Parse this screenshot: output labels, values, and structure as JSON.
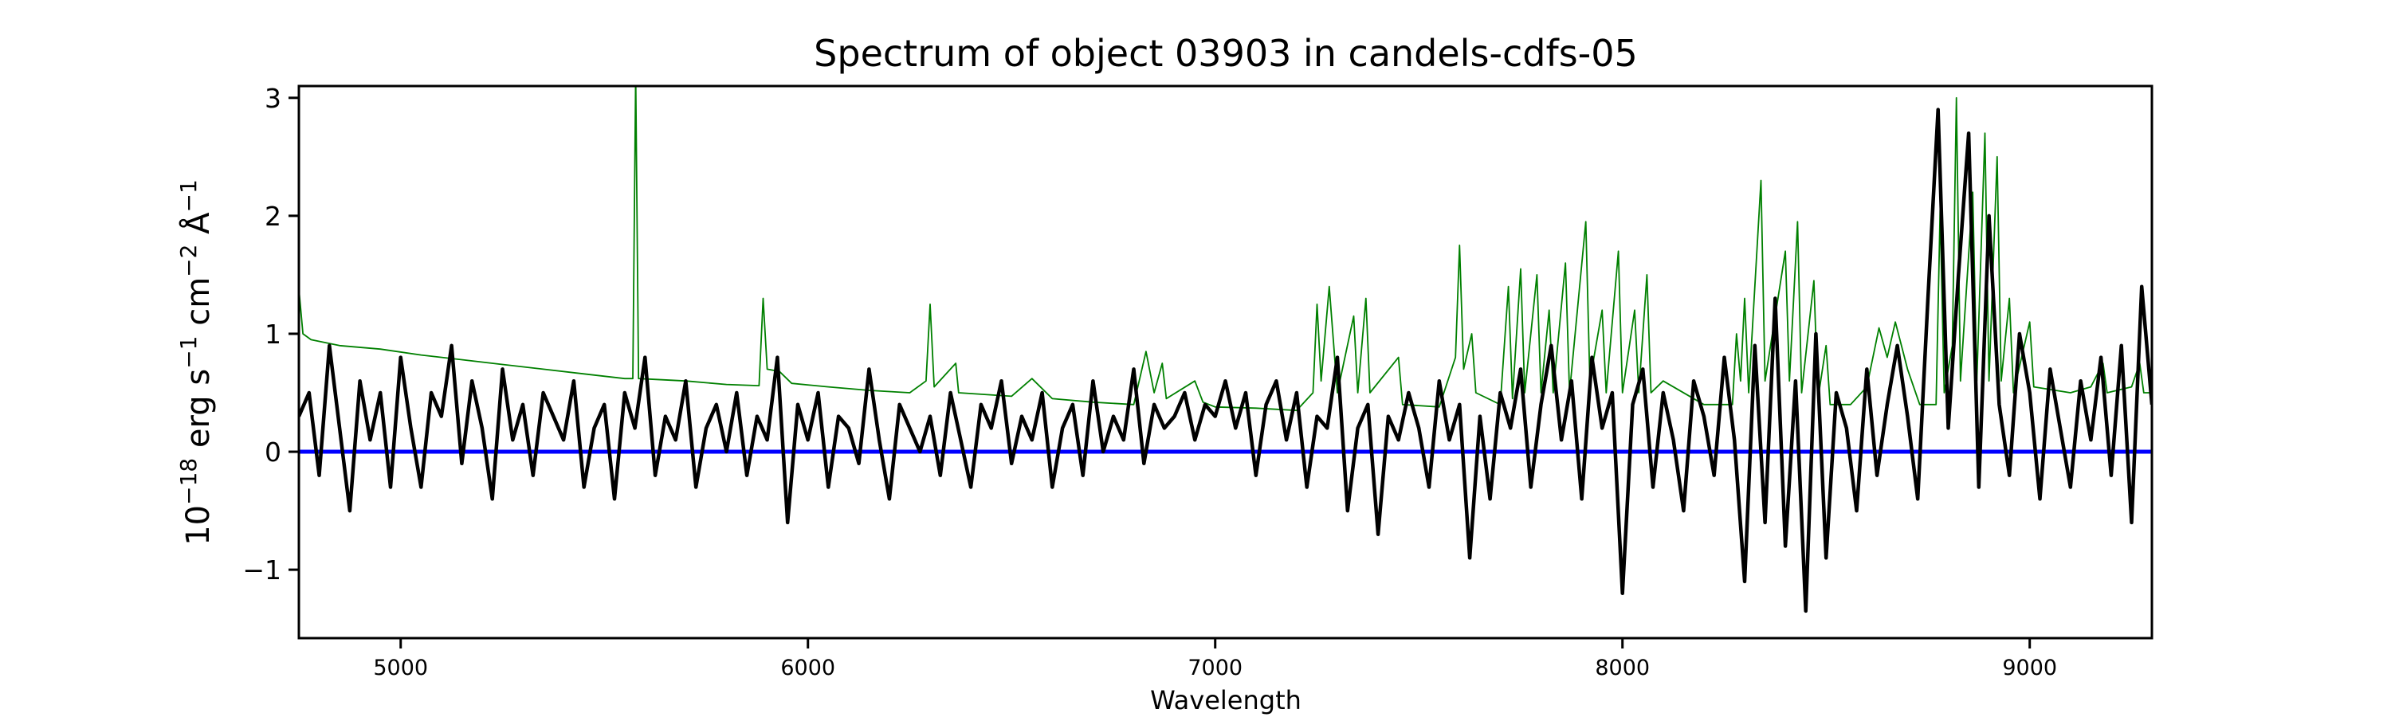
{
  "chart_data": {
    "type": "line",
    "title": "Spectrum of object 03903 in candels-cdfs-05",
    "xlabel": "Wavelength",
    "ylabel": "10^-18 erg s^-1 cm^-2 Å^-1",
    "ylabel_parts": {
      "base": "10",
      "exp1": "−18",
      "t1": " erg s",
      "exp2": "−1",
      "t2": " cm",
      "exp3": "−2",
      "t3": " Å",
      "exp4": "−1"
    },
    "xlim": [
      4750,
      9300
    ],
    "ylim": [
      -1.58,
      3.1
    ],
    "xticks": [
      5000,
      6000,
      7000,
      8000,
      9000
    ],
    "xtick_labels": [
      "5000",
      "6000",
      "7000",
      "8000",
      "9000"
    ],
    "yticks": [
      -1,
      0,
      1,
      2,
      3
    ],
    "ytick_labels": [
      "−1",
      "0",
      "1",
      "2",
      "3"
    ],
    "grid": false,
    "colors": {
      "flux": "#000000",
      "error": "#008000",
      "zero": "#0000ff"
    },
    "series": [
      {
        "role": "flux",
        "x": [
          4750,
          4775,
          4800,
          4825,
          4850,
          4875,
          4900,
          4925,
          4950,
          4975,
          5000,
          5025,
          5050,
          5075,
          5100,
          5125,
          5150,
          5175,
          5200,
          5225,
          5250,
          5275,
          5300,
          5325,
          5350,
          5375,
          5400,
          5425,
          5450,
          5475,
          5500,
          5525,
          5550,
          5575,
          5600,
          5625,
          5650,
          5675,
          5700,
          5725,
          5750,
          5775,
          5800,
          5825,
          5850,
          5875,
          5900,
          5925,
          5950,
          5975,
          6000,
          6025,
          6050,
          6075,
          6100,
          6125,
          6150,
          6175,
          6200,
          6225,
          6250,
          6275,
          6300,
          6325,
          6350,
          6375,
          6400,
          6425,
          6450,
          6475,
          6500,
          6525,
          6550,
          6575,
          6600,
          6625,
          6650,
          6675,
          6700,
          6725,
          6750,
          6775,
          6800,
          6825,
          6850,
          6875,
          6900,
          6925,
          6950,
          6975,
          7000,
          7025,
          7050,
          7075,
          7100,
          7125,
          7150,
          7175,
          7200,
          7225,
          7250,
          7275,
          7300,
          7325,
          7350,
          7375,
          7400,
          7425,
          7450,
          7475,
          7500,
          7525,
          7550,
          7575,
          7600,
          7625,
          7650,
          7675,
          7700,
          7725,
          7750,
          7775,
          7800,
          7825,
          7850,
          7875,
          7900,
          7925,
          7950,
          7975,
          8000,
          8025,
          8050,
          8075,
          8100,
          8125,
          8150,
          8175,
          8200,
          8225,
          8250,
          8275,
          8300,
          8325,
          8350,
          8375,
          8400,
          8425,
          8450,
          8475,
          8500,
          8525,
          8550,
          8575,
          8600,
          8625,
          8650,
          8675,
          8700,
          8725,
          8750,
          8775,
          8800,
          8825,
          8850,
          8875,
          8900,
          8925,
          8950,
          8975,
          9000,
          9025,
          9050,
          9075,
          9100,
          9125,
          9150,
          9175,
          9200,
          9225,
          9250,
          9275,
          9300
        ],
        "y": [
          0.3,
          0.5,
          -0.2,
          0.9,
          0.2,
          -0.5,
          0.6,
          0.1,
          0.5,
          -0.3,
          0.8,
          0.2,
          -0.3,
          0.5,
          0.3,
          0.9,
          -0.1,
          0.6,
          0.2,
          -0.4,
          0.7,
          0.1,
          0.4,
          -0.2,
          0.5,
          0.3,
          0.1,
          0.6,
          -0.3,
          0.2,
          0.4,
          -0.4,
          0.5,
          0.2,
          0.8,
          -0.2,
          0.3,
          0.1,
          0.6,
          -0.3,
          0.2,
          0.4,
          0.0,
          0.5,
          -0.2,
          0.3,
          0.1,
          0.8,
          -0.6,
          0.4,
          0.1,
          0.5,
          -0.3,
          0.3,
          0.2,
          -0.1,
          0.7,
          0.1,
          -0.4,
          0.4,
          0.2,
          0.0,
          0.3,
          -0.2,
          0.5,
          0.1,
          -0.3,
          0.4,
          0.2,
          0.6,
          -0.1,
          0.3,
          0.1,
          0.5,
          -0.3,
          0.2,
          0.4,
          -0.2,
          0.6,
          0.0,
          0.3,
          0.1,
          0.7,
          -0.1,
          0.4,
          0.2,
          0.3,
          0.5,
          0.1,
          0.4,
          0.3,
          0.6,
          0.2,
          0.5,
          -0.2,
          0.4,
          0.6,
          0.1,
          0.5,
          -0.3,
          0.3,
          0.2,
          0.8,
          -0.5,
          0.2,
          0.4,
          -0.7,
          0.3,
          0.1,
          0.5,
          0.2,
          -0.3,
          0.6,
          0.1,
          0.4,
          -0.9,
          0.3,
          -0.4,
          0.5,
          0.2,
          0.7,
          -0.3,
          0.4,
          0.9,
          0.1,
          0.6,
          -0.4,
          0.8,
          0.2,
          0.5,
          -1.2,
          0.4,
          0.7,
          -0.3,
          0.5,
          0.1,
          -0.5,
          0.6,
          0.3,
          -0.2,
          0.8,
          0.1,
          -1.1,
          0.9,
          -0.6,
          1.3,
          -0.8,
          0.6,
          -1.35,
          1.0,
          -0.9,
          0.5,
          0.2,
          -0.5,
          0.7,
          -0.2,
          0.4,
          0.9,
          0.3,
          -0.4,
          1.3,
          2.9,
          0.2,
          1.5,
          2.7,
          -0.3,
          2.0,
          0.4,
          -0.2,
          1.0,
          0.5,
          -0.4,
          0.7,
          0.2,
          -0.3,
          0.6,
          0.1,
          0.8,
          -0.2,
          0.9,
          -0.6,
          1.4,
          0.4
        ]
      },
      {
        "role": "error",
        "x": [
          4750,
          4760,
          4780,
          4850,
          4950,
          5050,
          5150,
          5250,
          5350,
          5450,
          5550,
          5570,
          5577,
          5584,
          5700,
          5800,
          5880,
          5890,
          5900,
          5930,
          5960,
          6050,
          6150,
          6250,
          6290,
          6300,
          6310,
          6363,
          6370,
          6500,
          6550,
          6600,
          6700,
          6800,
          6830,
          6850,
          6870,
          6880,
          6950,
          6970,
          7000,
          7100,
          7200,
          7240,
          7250,
          7260,
          7280,
          7300,
          7340,
          7350,
          7370,
          7380,
          7450,
          7460,
          7550,
          7590,
          7600,
          7610,
          7630,
          7640,
          7700,
          7720,
          7730,
          7750,
          7760,
          7790,
          7800,
          7820,
          7830,
          7860,
          7870,
          7910,
          7920,
          7950,
          7960,
          7990,
          8000,
          8030,
          8040,
          8060,
          8070,
          8100,
          8200,
          8270,
          8280,
          8290,
          8300,
          8310,
          8340,
          8350,
          8400,
          8410,
          8430,
          8440,
          8470,
          8480,
          8500,
          8510,
          8560,
          8600,
          8630,
          8650,
          8670,
          8700,
          8730,
          8770,
          8780,
          8790,
          8810,
          8820,
          8830,
          8860,
          8870,
          8890,
          8900,
          8920,
          8930,
          8950,
          8960,
          9000,
          9010,
          9100,
          9150,
          9180,
          9190,
          9250,
          9270,
          9280,
          9300
        ],
        "y": [
          1.38,
          1.0,
          0.95,
          0.9,
          0.87,
          0.82,
          0.78,
          0.74,
          0.7,
          0.66,
          0.62,
          0.62,
          3.2,
          0.62,
          0.6,
          0.57,
          0.56,
          1.3,
          0.7,
          0.68,
          0.58,
          0.55,
          0.52,
          0.5,
          0.6,
          1.25,
          0.55,
          0.75,
          0.5,
          0.47,
          0.62,
          0.45,
          0.42,
          0.4,
          0.85,
          0.5,
          0.75,
          0.45,
          0.6,
          0.42,
          0.38,
          0.37,
          0.35,
          0.5,
          1.25,
          0.6,
          1.4,
          0.5,
          1.15,
          0.5,
          1.3,
          0.5,
          0.8,
          0.4,
          0.38,
          0.8,
          1.75,
          0.7,
          1.0,
          0.5,
          0.4,
          1.4,
          0.45,
          1.55,
          0.5,
          1.5,
          0.5,
          1.2,
          0.5,
          1.6,
          0.5,
          1.95,
          0.6,
          1.2,
          0.5,
          1.7,
          0.5,
          1.2,
          0.5,
          1.5,
          0.5,
          0.6,
          0.4,
          0.4,
          1.0,
          0.6,
          1.3,
          0.5,
          2.3,
          0.6,
          1.7,
          0.6,
          1.95,
          0.5,
          1.45,
          0.45,
          0.9,
          0.4,
          0.4,
          0.55,
          1.05,
          0.8,
          1.1,
          0.7,
          0.4,
          0.4,
          2.05,
          0.5,
          0.9,
          3.0,
          0.6,
          2.2,
          0.6,
          2.7,
          0.6,
          2.5,
          0.6,
          1.3,
          0.5,
          1.1,
          0.55,
          0.5,
          0.55,
          0.75,
          0.5,
          0.55,
          0.75,
          0.5,
          0.5
        ]
      },
      {
        "role": "zero",
        "x": [
          4750,
          9300
        ],
        "y": [
          0,
          0
        ]
      }
    ]
  }
}
